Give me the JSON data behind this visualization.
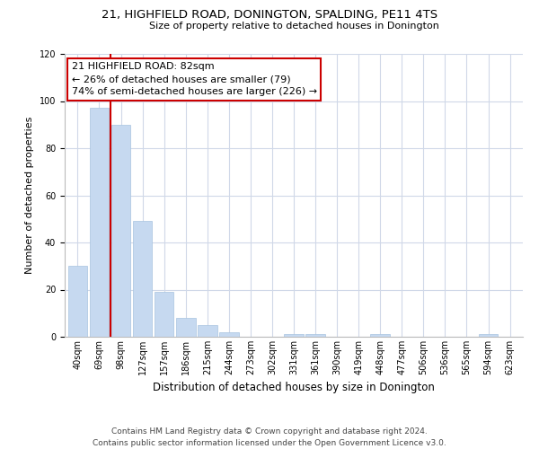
{
  "title": "21, HIGHFIELD ROAD, DONINGTON, SPALDING, PE11 4TS",
  "subtitle": "Size of property relative to detached houses in Donington",
  "xlabel": "Distribution of detached houses by size in Donington",
  "ylabel": "Number of detached properties",
  "bar_labels": [
    "40sqm",
    "69sqm",
    "98sqm",
    "127sqm",
    "157sqm",
    "186sqm",
    "215sqm",
    "244sqm",
    "273sqm",
    "302sqm",
    "331sqm",
    "361sqm",
    "390sqm",
    "419sqm",
    "448sqm",
    "477sqm",
    "506sqm",
    "536sqm",
    "565sqm",
    "594sqm",
    "623sqm"
  ],
  "bar_values": [
    30,
    97,
    90,
    49,
    19,
    8,
    5,
    2,
    0,
    0,
    1,
    1,
    0,
    0,
    1,
    0,
    0,
    0,
    0,
    1,
    0
  ],
  "bar_color": "#c6d9f0",
  "bar_edge_color": "#a8c4e0",
  "vline_x": 1.5,
  "vline_color": "#cc0000",
  "annotation_line1": "21 HIGHFIELD ROAD: 82sqm",
  "annotation_line2": "← 26% of detached houses are smaller (79)",
  "annotation_line3": "74% of semi-detached houses are larger (226) →",
  "annotation_box_color": "#ffffff",
  "annotation_box_edge": "#cc0000",
  "ylim": [
    0,
    120
  ],
  "yticks": [
    0,
    20,
    40,
    60,
    80,
    100,
    120
  ],
  "footer_line1": "Contains HM Land Registry data © Crown copyright and database right 2024.",
  "footer_line2": "Contains public sector information licensed under the Open Government Licence v3.0.",
  "grid_color": "#d0d8e8",
  "background_color": "#ffffff",
  "title_fontsize": 9.5,
  "subtitle_fontsize": 8,
  "ylabel_fontsize": 8,
  "xlabel_fontsize": 8.5,
  "tick_fontsize": 7,
  "annotation_fontsize": 8,
  "footer_fontsize": 6.5
}
